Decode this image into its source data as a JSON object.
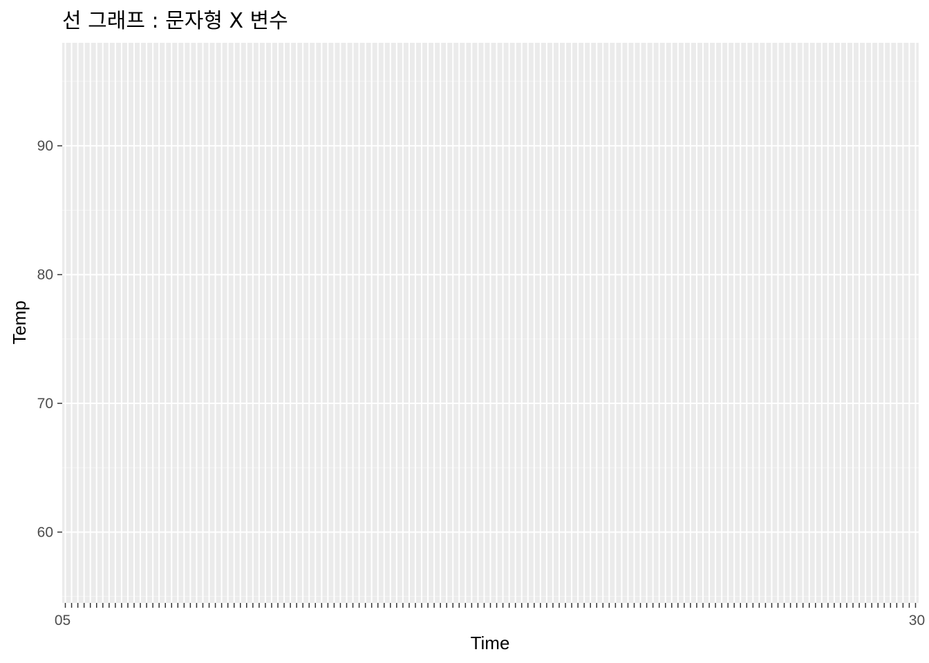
{
  "chart_data": {
    "type": "line",
    "title": "선 그래프 : 문자형 X 변수",
    "xlabel": "Time",
    "ylabel": "Temp",
    "x_type": "categorical",
    "x_category_count": 137,
    "x_first_label": "05",
    "x_last_label": "30",
    "ylim": [
      54.5,
      98
    ],
    "y_ticks": [
      60,
      70,
      80,
      90
    ],
    "grid": true,
    "series": [],
    "colors": {
      "panel_background": "#ebebeb",
      "grid_major": "#ffffff",
      "grid_minor": "#f5f5f5",
      "tick_text": "#4d4d4d",
      "tick_mark": "#333333",
      "text": "#000000"
    }
  }
}
